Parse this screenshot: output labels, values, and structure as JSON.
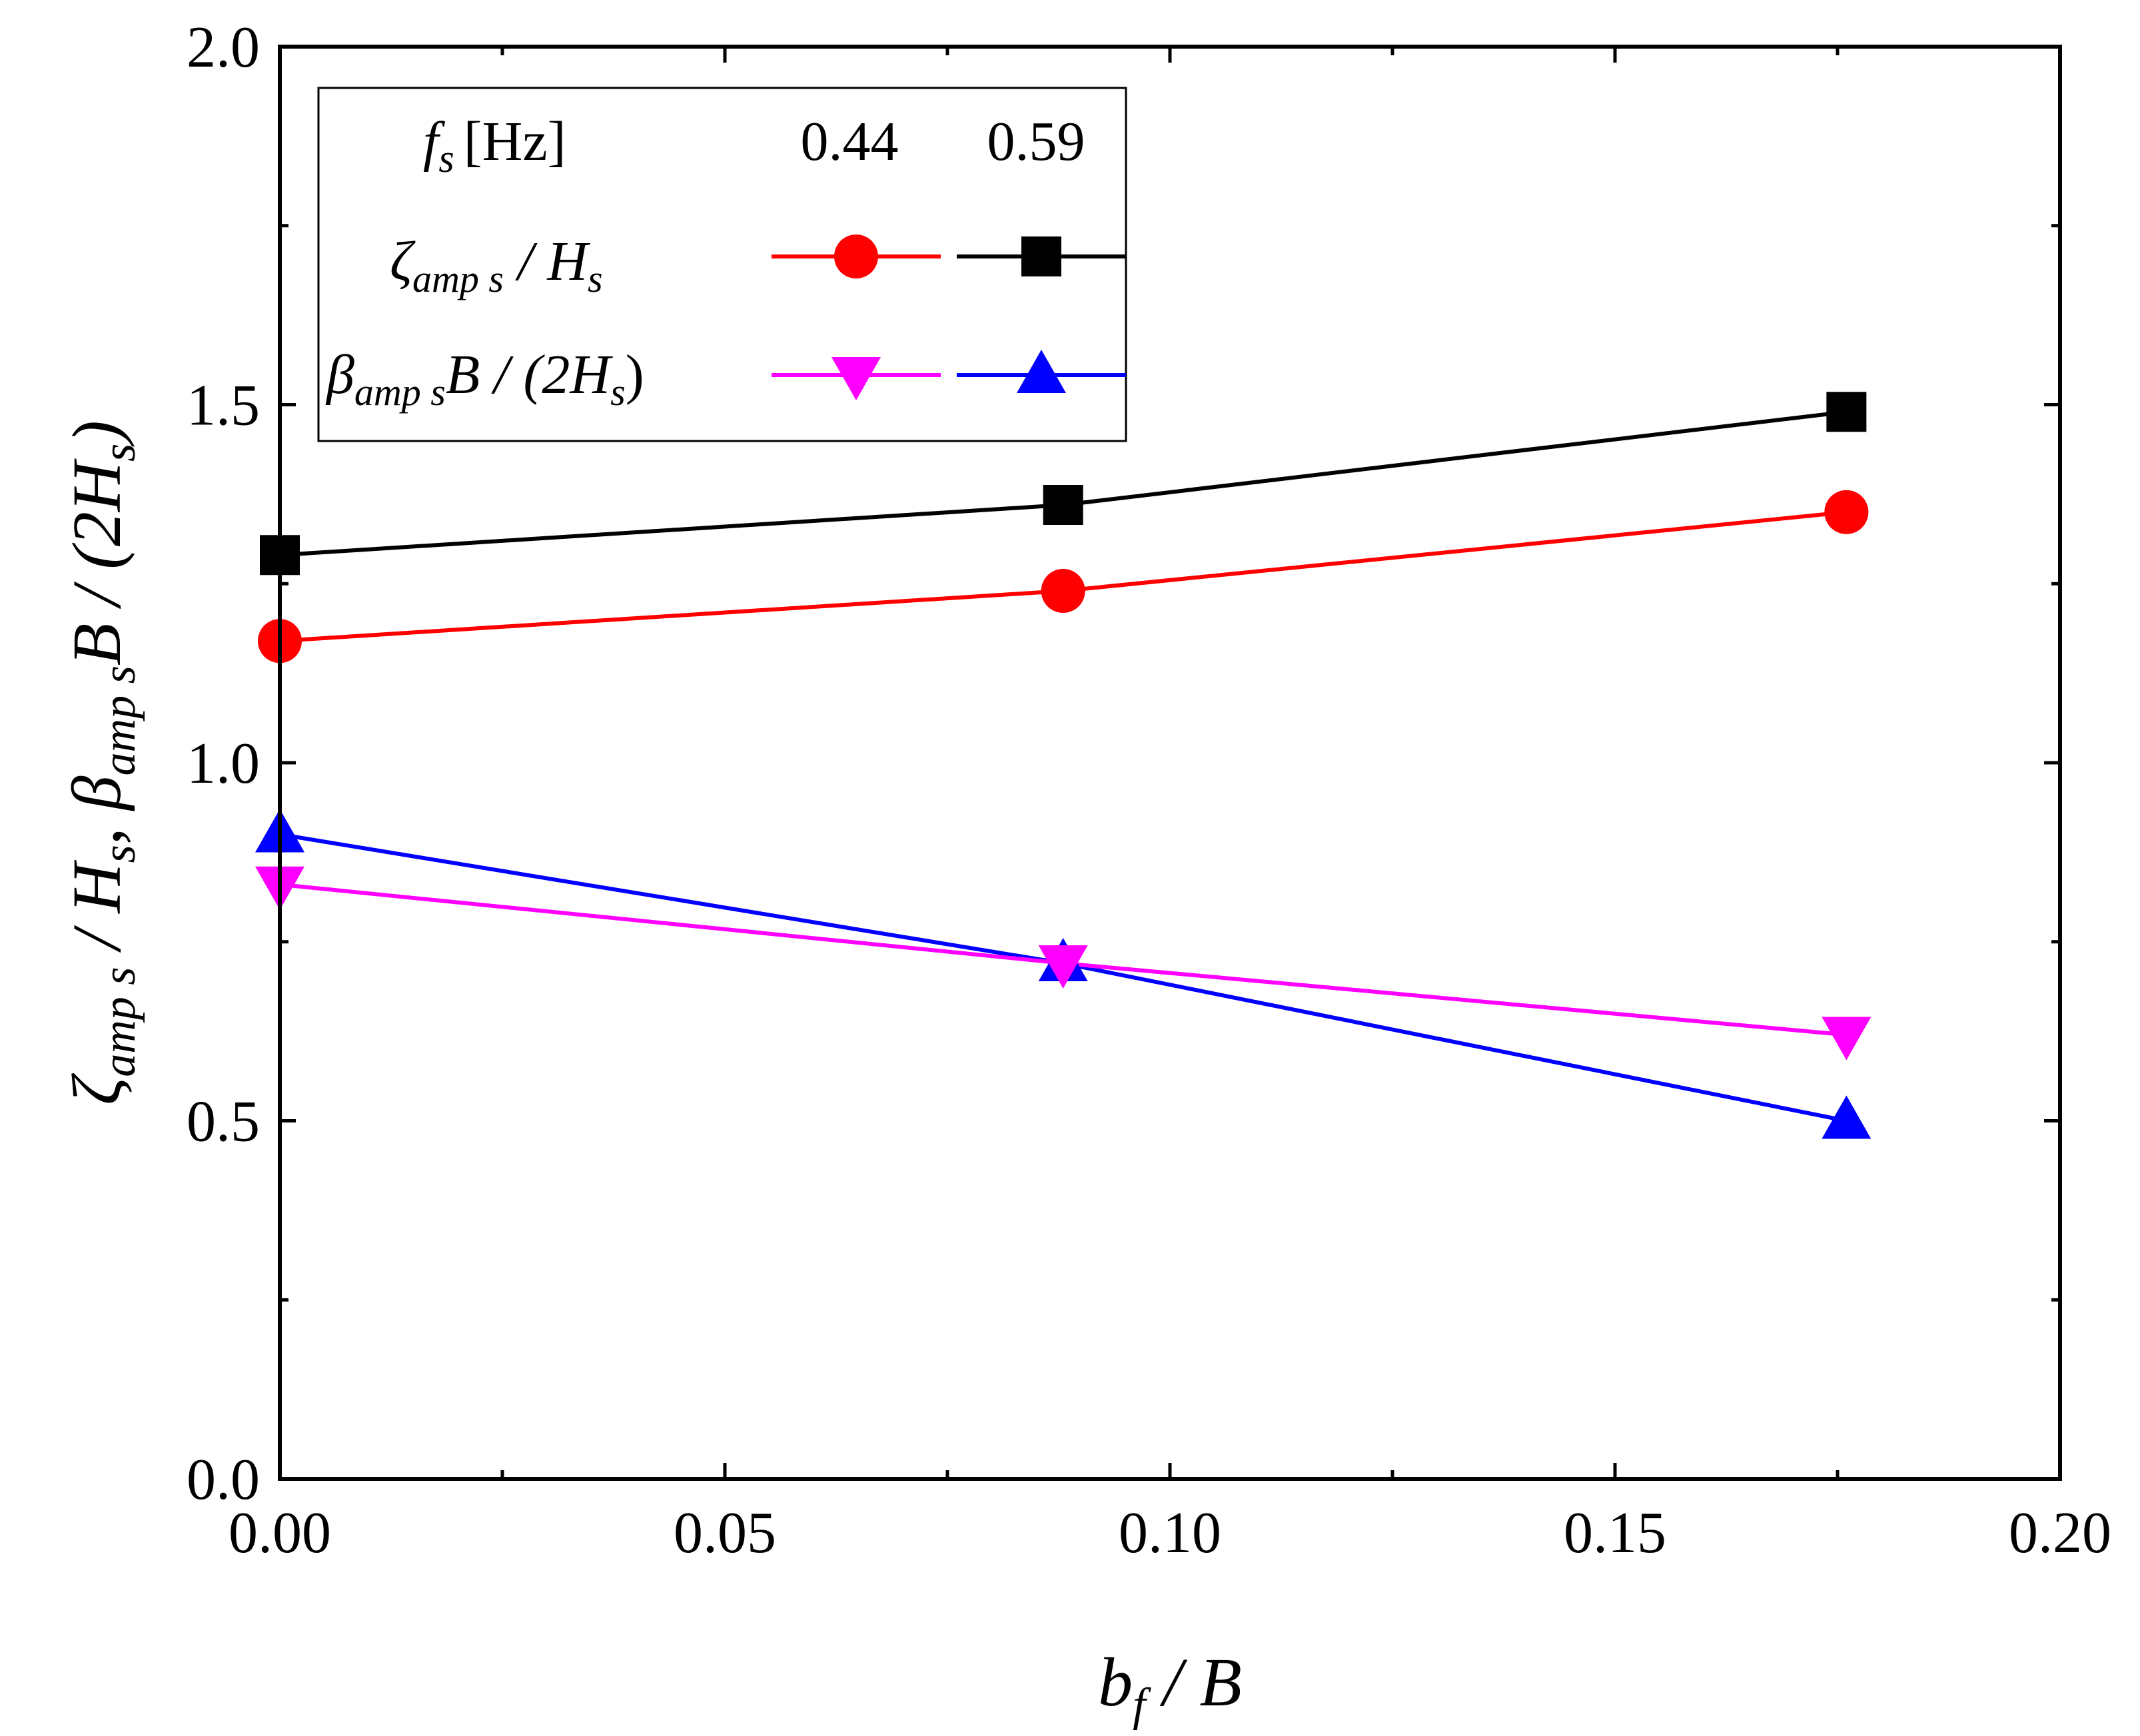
{
  "chart_data": {
    "type": "line",
    "xlabel": "b_f / B",
    "ylabel": "ζ_amp s / H_s, β_amp s B / (2H_s)",
    "xlim": [
      0,
      0.2
    ],
    "ylim": [
      0,
      2.0
    ],
    "xticks": [
      "0.00",
      "0.05",
      "0.10",
      "0.15",
      "0.20"
    ],
    "yticks": [
      "0.0",
      "0.5",
      "1.0",
      "1.5",
      "2.0"
    ],
    "x": [
      0.0,
      0.088,
      0.176
    ],
    "series": [
      {
        "name": "ζ_amp s / H_s, f_s = 0.59 Hz",
        "marker": "square",
        "color": "#000000",
        "values": [
          1.29,
          1.36,
          1.49
        ]
      },
      {
        "name": "ζ_amp s / H_s, f_s = 0.44 Hz",
        "marker": "circle",
        "color": "#ff0000",
        "values": [
          1.17,
          1.24,
          1.35
        ]
      },
      {
        "name": "β_amp s B / (2H_s), f_s = 0.59 Hz",
        "marker": "triangle-up",
        "color": "#0000ff",
        "values": [
          0.9,
          0.72,
          0.5
        ]
      },
      {
        "name": "β_amp s B / (2H_s), f_s = 0.44 Hz",
        "marker": "triangle-down",
        "color": "#ff00ff",
        "values": [
          0.83,
          0.72,
          0.62
        ]
      }
    ],
    "legend": {
      "placement": "top-left",
      "header_var": "f",
      "header_sub": "s",
      "header_unit": "[Hz]",
      "col_values": [
        "0.44",
        "0.59"
      ],
      "zeta_row": {
        "sym": "ζ",
        "sub": "amp s",
        "rest": " / H",
        "rest_sub": "s"
      },
      "beta_row": {
        "sym": "β",
        "sub": "amp s",
        "mid": "B",
        "rest": " / (2H",
        "rest_sub": "s",
        "close": ")"
      }
    },
    "xlabel_parts": {
      "var": "b",
      "sub": "f",
      "rest": " / B"
    },
    "ylabel_parts": {
      "zeta": "ζ",
      "zeta_sub": "amp s",
      "over_h": " / H",
      "h_sub": "s",
      "comma": ",",
      "beta": " β",
      "beta_sub": "amp s",
      "b": "B",
      "over_2h": " / (2H",
      "h2_sub": "s",
      "close": ")"
    }
  }
}
